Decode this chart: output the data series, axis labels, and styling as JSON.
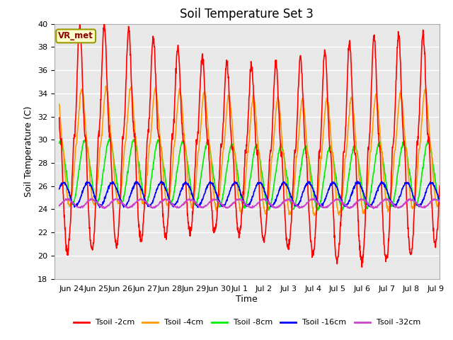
{
  "title": "Soil Temperature Set 3",
  "xlabel": "Time",
  "ylabel": "Soil Temperature (C)",
  "ylim": [
    18,
    40
  ],
  "yticks": [
    18,
    20,
    22,
    24,
    26,
    28,
    30,
    32,
    34,
    36,
    38,
    40
  ],
  "fig_bg_color": "#ffffff",
  "plot_bg_color": "#e8e8e8",
  "grid_color": "#ffffff",
  "annotation_text": "VR_met",
  "annotation_bg": "#ffffcc",
  "annotation_border": "#999900",
  "series": [
    {
      "label": "Tsoil -2cm",
      "color": "#ff0000",
      "lw": 1.2
    },
    {
      "label": "Tsoil -4cm",
      "color": "#ff9900",
      "lw": 1.2
    },
    {
      "label": "Tsoil -8cm",
      "color": "#00ee00",
      "lw": 1.2
    },
    {
      "label": "Tsoil -16cm",
      "color": "#0000ff",
      "lw": 1.2
    },
    {
      "label": "Tsoil -32cm",
      "color": "#cc44cc",
      "lw": 1.2
    }
  ],
  "x_tick_labels": [
    "Jun 24",
    "Jun 25",
    "Jun 26",
    "Jun 27",
    "Jun 28",
    "Jun 29",
    "Jun 30",
    "Jul 1",
    "Jul 2",
    "Jul 3",
    "Jul 4",
    "Jul 5",
    "Jul 6",
    "Jul 7",
    "Jul 8",
    "Jul 9"
  ],
  "title_fontsize": 12,
  "axis_label_fontsize": 9,
  "tick_fontsize": 8
}
